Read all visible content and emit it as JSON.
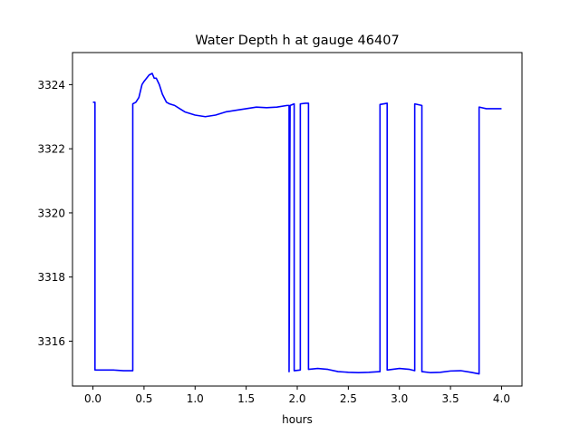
{
  "chart_data": {
    "type": "line",
    "title": "Water Depth h at gauge 46407",
    "xlabel": "hours",
    "ylabel": "",
    "xlim": [
      -0.2,
      4.2
    ],
    "ylim": [
      3314.6,
      3325.0
    ],
    "xticks": [
      0.0,
      0.5,
      1.0,
      1.5,
      2.0,
      2.5,
      3.0,
      3.5,
      4.0
    ],
    "xtick_labels": [
      "0.0",
      "0.5",
      "1.0",
      "1.5",
      "2.0",
      "2.5",
      "3.0",
      "3.5",
      "4.0"
    ],
    "yticks": [
      3316,
      3318,
      3320,
      3322,
      3324
    ],
    "ytick_labels": [
      "3316",
      "3318",
      "3320",
      "3322",
      "3324"
    ],
    "grid": false,
    "series": [
      {
        "name": "",
        "color": "#0000ff",
        "x": [
          0.0,
          0.02,
          0.02,
          0.1,
          0.2,
          0.3,
          0.35,
          0.39,
          0.39,
          0.42,
          0.45,
          0.48,
          0.5,
          0.55,
          0.58,
          0.6,
          0.62,
          0.65,
          0.68,
          0.72,
          0.75,
          0.8,
          0.85,
          0.9,
          1.0,
          1.1,
          1.2,
          1.3,
          1.4,
          1.5,
          1.6,
          1.7,
          1.8,
          1.9,
          1.92,
          1.92,
          1.93,
          1.97,
          1.97,
          2.03,
          2.03,
          2.08,
          2.11,
          2.11,
          2.2,
          2.3,
          2.4,
          2.5,
          2.6,
          2.7,
          2.81,
          2.81,
          2.88,
          2.88,
          3.0,
          3.1,
          3.15,
          3.15,
          3.22,
          3.22,
          3.3,
          3.4,
          3.5,
          3.6,
          3.7,
          3.78,
          3.78,
          3.85,
          3.9,
          4.0
        ],
        "y": [
          3323.45,
          3323.45,
          3315.1,
          3315.1,
          3315.1,
          3315.08,
          3315.08,
          3315.08,
          3323.4,
          3323.45,
          3323.6,
          3324.0,
          3324.1,
          3324.3,
          3324.35,
          3324.2,
          3324.2,
          3324.0,
          3323.7,
          3323.45,
          3323.4,
          3323.35,
          3323.25,
          3323.15,
          3323.05,
          3323.0,
          3323.05,
          3323.15,
          3323.2,
          3323.25,
          3323.3,
          3323.28,
          3323.3,
          3323.35,
          3323.35,
          3315.05,
          3323.35,
          3323.4,
          3315.08,
          3315.1,
          3323.4,
          3323.42,
          3323.42,
          3315.12,
          3315.15,
          3315.12,
          3315.05,
          3315.03,
          3315.02,
          3315.03,
          3315.05,
          3323.38,
          3323.42,
          3315.1,
          3315.15,
          3315.12,
          3315.08,
          3323.4,
          3323.35,
          3315.05,
          3315.02,
          3315.03,
          3315.07,
          3315.08,
          3315.03,
          3314.98,
          3323.3,
          3323.25,
          3323.25,
          3323.25
        ]
      }
    ]
  }
}
